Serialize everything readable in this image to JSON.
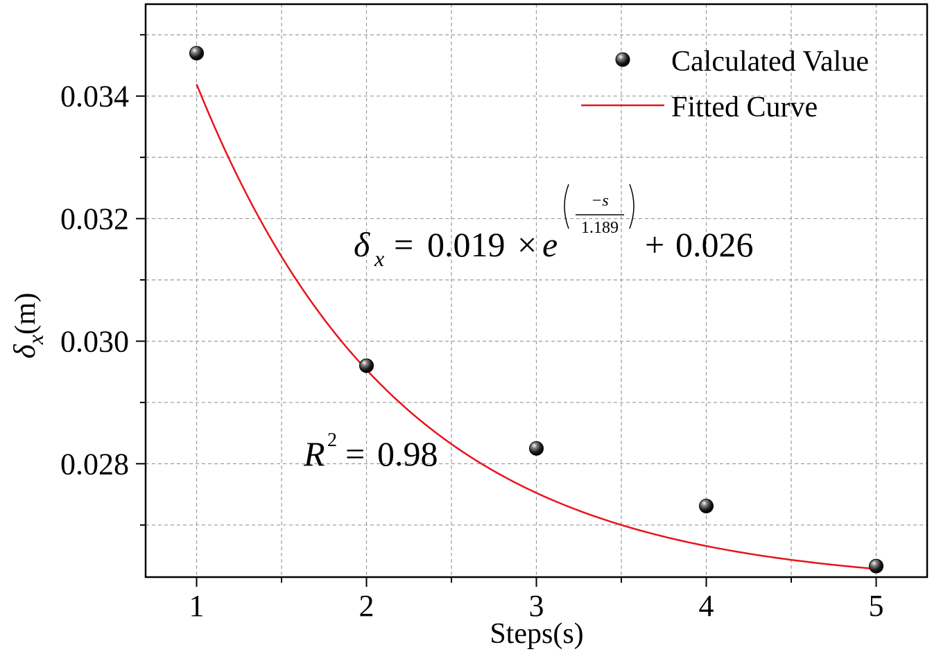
{
  "chart_data": {
    "type": "scatter",
    "title": "",
    "xlabel": "Steps(s)",
    "ylabel_symbol": "δ",
    "ylabel_subscript": "x",
    "ylabel_unit": "(m)",
    "xlim": [
      0.7,
      5.3
    ],
    "ylim": [
      0.02615,
      0.0355
    ],
    "x_ticks": [
      1,
      2,
      3,
      4,
      5
    ],
    "x_tick_labels": [
      "1",
      "2",
      "3",
      "4",
      "5"
    ],
    "x_minor_ticks": [
      1.5,
      2.5,
      3.5,
      4.5
    ],
    "y_ticks": [
      0.028,
      0.03,
      0.032,
      0.034
    ],
    "y_tick_labels": [
      "0.028",
      "0.030",
      "0.032",
      "0.034"
    ],
    "y_minor_ticks": [
      0.027,
      0.029,
      0.031,
      0.033,
      0.035
    ],
    "grid": true,
    "legend_position": "top-right",
    "series": [
      {
        "name": "Calculated Value",
        "kind": "scatter",
        "color": "#000000",
        "x": [
          1,
          2,
          3,
          4,
          5
        ],
        "y": [
          0.0347,
          0.0296,
          0.02825,
          0.02731,
          0.02633
        ]
      },
      {
        "name": "Fitted Curve",
        "kind": "line",
        "color": "#e8141b",
        "formula": {
          "a": 0.019,
          "t": 1.189,
          "c": 0.026
        },
        "x_range": [
          1,
          5
        ]
      }
    ],
    "annotations": {
      "equation": {
        "lhs_symbol": "δ",
        "lhs_subscript": "x",
        "equals": "=",
        "coef": "0.019",
        "times": "×",
        "base": "e",
        "exp_numerator": "−s",
        "exp_denominator": "1.189",
        "plus": "+",
        "constant": "0.026"
      },
      "r_squared": {
        "symbol": "R",
        "power": "2",
        "equals": "=",
        "value": "0.98"
      }
    }
  }
}
